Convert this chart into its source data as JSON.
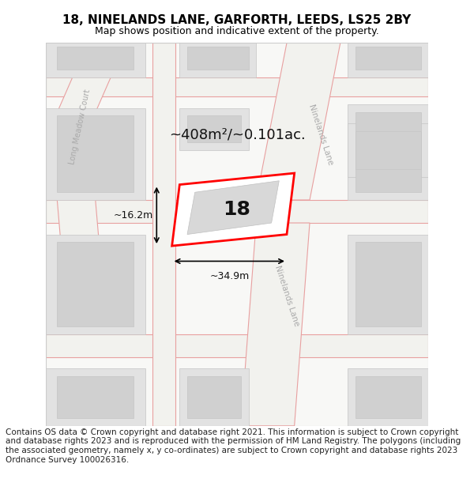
{
  "title": "18, NINELANDS LANE, GARFORTH, LEEDS, LS25 2BY",
  "subtitle": "Map shows position and indicative extent of the property.",
  "footer": "Contains OS data © Crown copyright and database right 2021. This information is subject to Crown copyright and database rights 2023 and is reproduced with the permission of HM Land Registry. The polygons (including the associated geometry, namely x, y co-ordinates) are subject to Crown copyright and database rights 2023 Ordnance Survey 100026316.",
  "property_number": "18",
  "area_label": "~408m²/~0.101ac.",
  "width_label": "~34.9m",
  "height_label": "~16.2m",
  "title_fontsize": 11,
  "subtitle_fontsize": 9,
  "footer_fontsize": 7.5,
  "road_label_color": "#aaaaaa",
  "highlight_color": "#ff0000",
  "bldg_fill": "#e2e2e2",
  "bldg_inner_fill": "#d0d0d0",
  "bldg_ec": "#c5c5c5",
  "road_fc": "#f2f2ee",
  "road_ec": "#e8a0a0",
  "map_bg": "#f8f8f6"
}
